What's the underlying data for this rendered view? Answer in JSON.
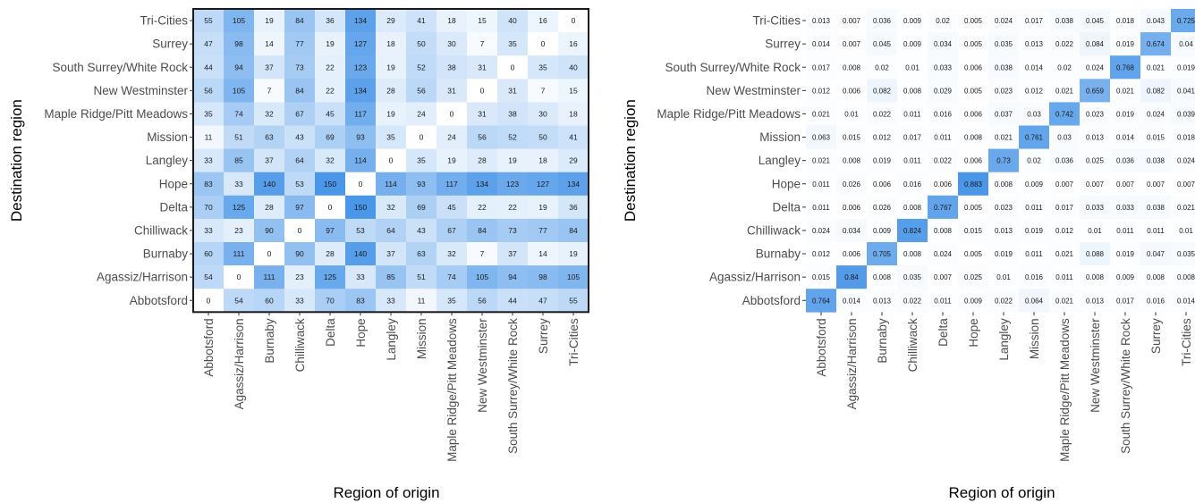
{
  "chart_data": [
    {
      "type": "heatmap",
      "xlabel": "Region of origin",
      "ylabel": "Destination region",
      "x_categories": [
        "Abbotsford",
        "Agassiz/Harrison",
        "Burnaby",
        "Chilliwack",
        "Delta",
        "Hope",
        "Langley",
        "Mission",
        "Maple Ridge/Pitt Meadows",
        "New Westminster",
        "South Surrey/White Rock",
        "Surrey",
        "Tri-Cities"
      ],
      "y_categories": [
        "Tri-Cities",
        "Surrey",
        "South Surrey/White Rock",
        "New Westminster",
        "Maple Ridge/Pitt Meadows",
        "Mission",
        "Langley",
        "Hope",
        "Delta",
        "Chilliwack",
        "Burnaby",
        "Agassiz/Harrison",
        "Abbotsford"
      ],
      "values": [
        [
          55,
          105,
          19,
          84,
          36,
          134,
          29,
          41,
          18,
          15,
          40,
          16,
          0
        ],
        [
          47,
          98,
          14,
          77,
          19,
          127,
          18,
          50,
          30,
          7,
          35,
          0,
          16
        ],
        [
          44,
          94,
          37,
          73,
          22,
          123,
          19,
          52,
          38,
          31,
          0,
          35,
          40
        ],
        [
          56,
          105,
          7,
          84,
          22,
          134,
          28,
          56,
          31,
          0,
          31,
          7,
          15
        ],
        [
          35,
          74,
          32,
          67,
          45,
          117,
          19,
          24,
          0,
          31,
          38,
          30,
          18
        ],
        [
          11,
          51,
          63,
          43,
          69,
          93,
          35,
          0,
          24,
          56,
          52,
          50,
          41
        ],
        [
          33,
          85,
          37,
          64,
          32,
          114,
          0,
          35,
          19,
          28,
          19,
          18,
          29
        ],
        [
          83,
          33,
          140,
          53,
          150,
          0,
          114,
          93,
          117,
          134,
          123,
          127,
          134
        ],
        [
          70,
          125,
          28,
          97,
          0,
          150,
          32,
          69,
          45,
          22,
          22,
          19,
          36
        ],
        [
          33,
          23,
          90,
          0,
          97,
          53,
          64,
          43,
          67,
          84,
          73,
          77,
          84
        ],
        [
          60,
          111,
          0,
          90,
          28,
          140,
          37,
          63,
          32,
          7,
          37,
          14,
          19
        ],
        [
          54,
          0,
          111,
          23,
          125,
          33,
          85,
          51,
          74,
          105,
          94,
          98,
          105
        ],
        [
          0,
          54,
          60,
          33,
          70,
          83,
          33,
          11,
          35,
          56,
          44,
          47,
          55
        ]
      ],
      "color_range": [
        0,
        150
      ],
      "colors": {
        "low": "#ffffff",
        "high": "#4a96e8"
      },
      "border": true
    },
    {
      "type": "heatmap",
      "xlabel": "Region of origin",
      "ylabel": "Destination region",
      "x_categories": [
        "Abbotsford",
        "Agassiz/Harrison",
        "Burnaby",
        "Chilliwack",
        "Delta",
        "Hope",
        "Langley",
        "Mission",
        "Maple Ridge/Pitt Meadows",
        "New Westminster",
        "South Surrey/White Rock",
        "Surrey",
        "Tri-Cities"
      ],
      "y_categories": [
        "Tri-Cities",
        "Surrey",
        "South Surrey/White Rock",
        "New Westminster",
        "Maple Ridge/Pitt Meadows",
        "Mission",
        "Langley",
        "Hope",
        "Delta",
        "Chilliwack",
        "Burnaby",
        "Agassiz/Harrison",
        "Abbotsford"
      ],
      "values": [
        [
          "0.013",
          "0.007",
          "0.036",
          "0.009",
          "0.02",
          "0.005",
          "0.024",
          "0.017",
          "0.038",
          "0.045",
          "0.018",
          "0.043",
          "0.725"
        ],
        [
          "0.014",
          "0.007",
          "0.045",
          "0.009",
          "0.034",
          "0.005",
          "0.035",
          "0.013",
          "0.022",
          "0.084",
          "0.019",
          "0.674",
          "0.04"
        ],
        [
          "0.017",
          "0.008",
          "0.02",
          "0.01",
          "0.033",
          "0.006",
          "0.038",
          "0.014",
          "0.02",
          "0.024",
          "0.768",
          "0.021",
          "0.019"
        ],
        [
          "0.012",
          "0.006",
          "0.082",
          "0.008",
          "0.029",
          "0.005",
          "0.023",
          "0.012",
          "0.021",
          "0.659",
          "0.021",
          "0.082",
          "0.041"
        ],
        [
          "0.021",
          "0.01",
          "0.022",
          "0.011",
          "0.016",
          "0.006",
          "0.037",
          "0.03",
          "0.742",
          "0.023",
          "0.019",
          "0.024",
          "0.039"
        ],
        [
          "0.063",
          "0.015",
          "0.012",
          "0.017",
          "0.011",
          "0.008",
          "0.021",
          "0.761",
          "0.03",
          "0.013",
          "0.014",
          "0.015",
          "0.018"
        ],
        [
          "0.021",
          "0.008",
          "0.019",
          "0.011",
          "0.022",
          "0.006",
          "0.73",
          "0.02",
          "0.036",
          "0.025",
          "0.036",
          "0.038",
          "0.024"
        ],
        [
          "0.011",
          "0.026",
          "0.006",
          "0.016",
          "0.006",
          "0.883",
          "0.008",
          "0.009",
          "0.007",
          "0.007",
          "0.007",
          "0.007",
          "0.007"
        ],
        [
          "0.011",
          "0.006",
          "0.026",
          "0.008",
          "0.767",
          "0.005",
          "0.023",
          "0.011",
          "0.017",
          "0.033",
          "0.033",
          "0.038",
          "0.021"
        ],
        [
          "0.024",
          "0.034",
          "0.009",
          "0.824",
          "0.008",
          "0.015",
          "0.013",
          "0.019",
          "0.012",
          "0.01",
          "0.011",
          "0.011",
          "0.01"
        ],
        [
          "0.012",
          "0.006",
          "0.705",
          "0.008",
          "0.024",
          "0.005",
          "0.019",
          "0.011",
          "0.021",
          "0.088",
          "0.019",
          "0.047",
          "0.035"
        ],
        [
          "0.015",
          "0.84",
          "0.008",
          "0.035",
          "0.007",
          "0.025",
          "0.01",
          "0.016",
          "0.011",
          "0.008",
          "0.009",
          "0.008",
          "0.008"
        ],
        [
          "0.764",
          "0.014",
          "0.013",
          "0.022",
          "0.011",
          "0.009",
          "0.022",
          "0.064",
          "0.021",
          "0.013",
          "0.017",
          "0.016",
          "0.014"
        ]
      ],
      "color_range": [
        0,
        0.883
      ],
      "colors": {
        "low": "#ffffff",
        "high": "#4a96e8"
      },
      "border": false
    }
  ]
}
